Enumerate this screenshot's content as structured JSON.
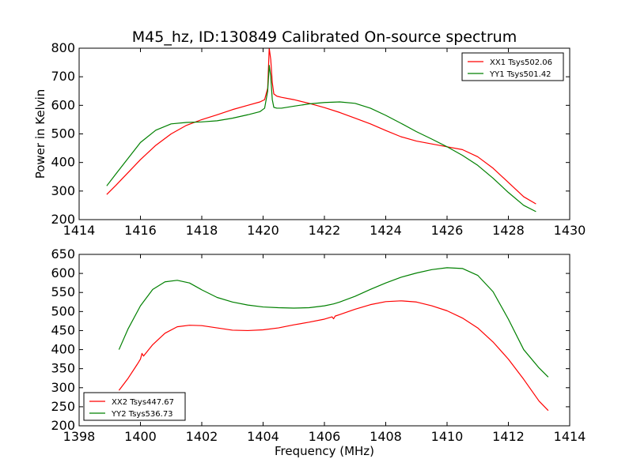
{
  "chart_data": [
    {
      "type": "line",
      "title": "M45_hz, ID:130849 Calibrated On-source spectrum",
      "xlabel": "",
      "ylabel": "Power in Kelvin",
      "xlim": [
        1414,
        1430
      ],
      "ylim": [
        200,
        800
      ],
      "xticks": [
        1414,
        1416,
        1418,
        1420,
        1422,
        1424,
        1426,
        1428,
        1430
      ],
      "yticks": [
        200,
        300,
        400,
        500,
        600,
        700,
        800
      ],
      "grid": false,
      "legend": "top-right",
      "series": [
        {
          "name": "XX1 Tsys502.06",
          "color": "#ff0000",
          "x": [
            1414.9,
            1415.2,
            1415.6,
            1416.0,
            1416.5,
            1417.0,
            1417.5,
            1418.0,
            1418.5,
            1419.0,
            1419.5,
            1419.9,
            1420.05,
            1420.15,
            1420.2,
            1420.25,
            1420.3,
            1420.35,
            1420.45,
            1420.6,
            1421.0,
            1421.5,
            1422.0,
            1422.5,
            1423.0,
            1423.5,
            1424.0,
            1424.5,
            1425.0,
            1425.5,
            1426.0,
            1426.5,
            1427.0,
            1427.5,
            1428.0,
            1428.5,
            1428.9
          ],
          "y": [
            288,
            320,
            365,
            410,
            460,
            500,
            530,
            550,
            567,
            585,
            600,
            612,
            620,
            660,
            800,
            760,
            680,
            640,
            632,
            628,
            620,
            607,
            592,
            575,
            555,
            535,
            512,
            490,
            475,
            465,
            455,
            445,
            420,
            380,
            330,
            280,
            255
          ]
        },
        {
          "name": "YY1 Tsys501.42",
          "color": "#008000",
          "x": [
            1414.9,
            1415.2,
            1415.6,
            1416.0,
            1416.5,
            1417.0,
            1417.5,
            1418.0,
            1418.5,
            1419.0,
            1419.5,
            1419.9,
            1420.05,
            1420.15,
            1420.2,
            1420.25,
            1420.3,
            1420.35,
            1420.45,
            1420.6,
            1421.0,
            1421.5,
            1422.0,
            1422.5,
            1423.0,
            1423.5,
            1424.0,
            1424.5,
            1425.0,
            1425.5,
            1426.0,
            1426.5,
            1427.0,
            1427.5,
            1428.0,
            1428.5,
            1428.9
          ],
          "y": [
            318,
            360,
            415,
            470,
            513,
            535,
            540,
            542,
            546,
            555,
            567,
            578,
            590,
            650,
            740,
            700,
            620,
            593,
            590,
            590,
            597,
            605,
            610,
            612,
            607,
            590,
            565,
            537,
            508,
            482,
            455,
            425,
            390,
            345,
            295,
            250,
            228
          ]
        }
      ]
    },
    {
      "type": "line",
      "title": "",
      "xlabel": "Frequency (MHz)",
      "ylabel": "",
      "xlim": [
        1398,
        1414
      ],
      "ylim": [
        200,
        650
      ],
      "xticks": [
        1398,
        1400,
        1402,
        1404,
        1406,
        1408,
        1410,
        1412,
        1414
      ],
      "yticks": [
        200,
        250,
        300,
        350,
        400,
        450,
        500,
        550,
        600,
        650
      ],
      "grid": false,
      "legend": "bottom-left",
      "series": [
        {
          "name": "XX2 Tsys447.67",
          "color": "#ff0000",
          "x": [
            1399.3,
            1399.6,
            1399.9,
            1400.0,
            1400.05,
            1400.1,
            1400.4,
            1400.8,
            1401.2,
            1401.6,
            1402.0,
            1402.5,
            1403.0,
            1403.5,
            1404.0,
            1404.5,
            1405.0,
            1405.5,
            1406.0,
            1406.25,
            1406.3,
            1406.35,
            1406.5,
            1407.0,
            1407.5,
            1408.0,
            1408.5,
            1409.0,
            1409.5,
            1410.0,
            1410.5,
            1411.0,
            1411.5,
            1412.0,
            1412.5,
            1413.0,
            1413.3
          ],
          "y": [
            293,
            325,
            362,
            375,
            390,
            383,
            413,
            443,
            460,
            464,
            463,
            457,
            451,
            450,
            452,
            457,
            465,
            472,
            480,
            486,
            481,
            488,
            492,
            506,
            518,
            526,
            528,
            525,
            515,
            502,
            483,
            457,
            420,
            375,
            322,
            265,
            240
          ]
        },
        {
          "name": "YY2 Tsys536.73",
          "color": "#008000",
          "x": [
            1399.3,
            1399.6,
            1400.0,
            1400.4,
            1400.8,
            1401.2,
            1401.6,
            1402.0,
            1402.5,
            1403.0,
            1403.5,
            1404.0,
            1404.5,
            1405.0,
            1405.5,
            1406.0,
            1406.3,
            1406.5,
            1407.0,
            1407.5,
            1408.0,
            1408.5,
            1409.0,
            1409.5,
            1410.0,
            1410.5,
            1411.0,
            1411.5,
            1412.0,
            1412.5,
            1413.0,
            1413.3
          ],
          "y": [
            400,
            455,
            515,
            558,
            578,
            582,
            575,
            557,
            537,
            525,
            517,
            512,
            510,
            509,
            510,
            515,
            520,
            525,
            540,
            558,
            575,
            590,
            601,
            610,
            615,
            613,
            595,
            552,
            480,
            400,
            352,
            328
          ]
        }
      ]
    }
  ]
}
